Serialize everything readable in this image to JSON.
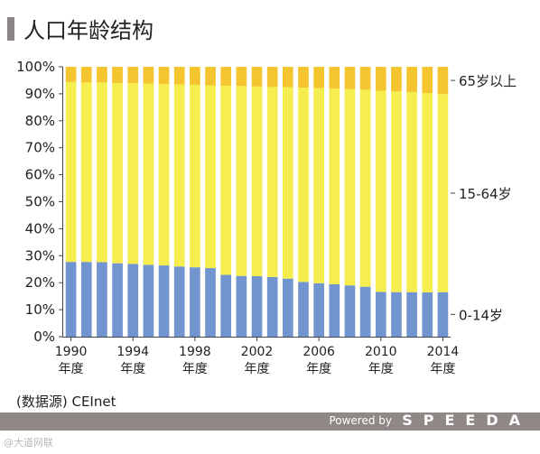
{
  "title": "人口年龄结构",
  "source": "(数据源) CEInet",
  "footer": {
    "powered": "Powered by",
    "brand": "SPEEDA"
  },
  "watermark": "@大道网联",
  "colors": {
    "young": "#7294cf",
    "working": "#f6ed4e",
    "elderly": "#f5c52f",
    "title_bar": "#8a8484",
    "footer": "#8f8886"
  },
  "chart_data": {
    "type": "bar",
    "stacked": true,
    "title": "",
    "xlabel": "",
    "ylabel": "",
    "ylim": [
      0,
      100
    ],
    "y_ticks": [
      "0%",
      "10%",
      "20%",
      "30%",
      "40%",
      "50%",
      "60%",
      "70%",
      "80%",
      "90%",
      "100%"
    ],
    "x_tick_labels": [
      {
        "year": "1990",
        "unit": "年度",
        "index": 0
      },
      {
        "year": "1994",
        "unit": "年度",
        "index": 4
      },
      {
        "year": "1998",
        "unit": "年度",
        "index": 8
      },
      {
        "year": "2002",
        "unit": "年度",
        "index": 12
      },
      {
        "year": "2006",
        "unit": "年度",
        "index": 16
      },
      {
        "year": "2010",
        "unit": "年度",
        "index": 20
      },
      {
        "year": "2014",
        "unit": "年度",
        "index": 24
      }
    ],
    "categories": [
      1990,
      1991,
      1992,
      1993,
      1994,
      1995,
      1996,
      1997,
      1998,
      1999,
      2000,
      2001,
      2002,
      2003,
      2004,
      2005,
      2006,
      2007,
      2008,
      2009,
      2010,
      2011,
      2012,
      2013,
      2014
    ],
    "series": [
      {
        "name": "0-14岁",
        "key": "young",
        "values": [
          27.7,
          27.7,
          27.6,
          27.2,
          27.0,
          26.6,
          26.4,
          26.0,
          25.7,
          25.4,
          22.9,
          22.5,
          22.4,
          22.1,
          21.5,
          20.3,
          19.8,
          19.4,
          19.0,
          18.5,
          16.6,
          16.5,
          16.5,
          16.4,
          16.5
        ]
      },
      {
        "name": "15-64岁",
        "key": "working",
        "values": [
          66.7,
          66.5,
          66.6,
          66.8,
          66.9,
          67.2,
          67.2,
          67.5,
          67.6,
          67.7,
          70.1,
          70.4,
          70.3,
          70.4,
          70.9,
          72.0,
          72.3,
          72.5,
          72.7,
          73.0,
          74.5,
          74.4,
          74.1,
          73.9,
          73.4
        ]
      },
      {
        "name": "65岁以上",
        "key": "elderly",
        "values": [
          5.6,
          5.8,
          5.8,
          6.0,
          6.1,
          6.2,
          6.4,
          6.5,
          6.7,
          6.9,
          7.0,
          7.1,
          7.3,
          7.5,
          7.6,
          7.7,
          7.9,
          8.1,
          8.3,
          8.5,
          8.9,
          9.1,
          9.4,
          9.7,
          10.1
        ]
      }
    ],
    "legend_placement": "right (labels beside last bar)",
    "grid": false
  }
}
